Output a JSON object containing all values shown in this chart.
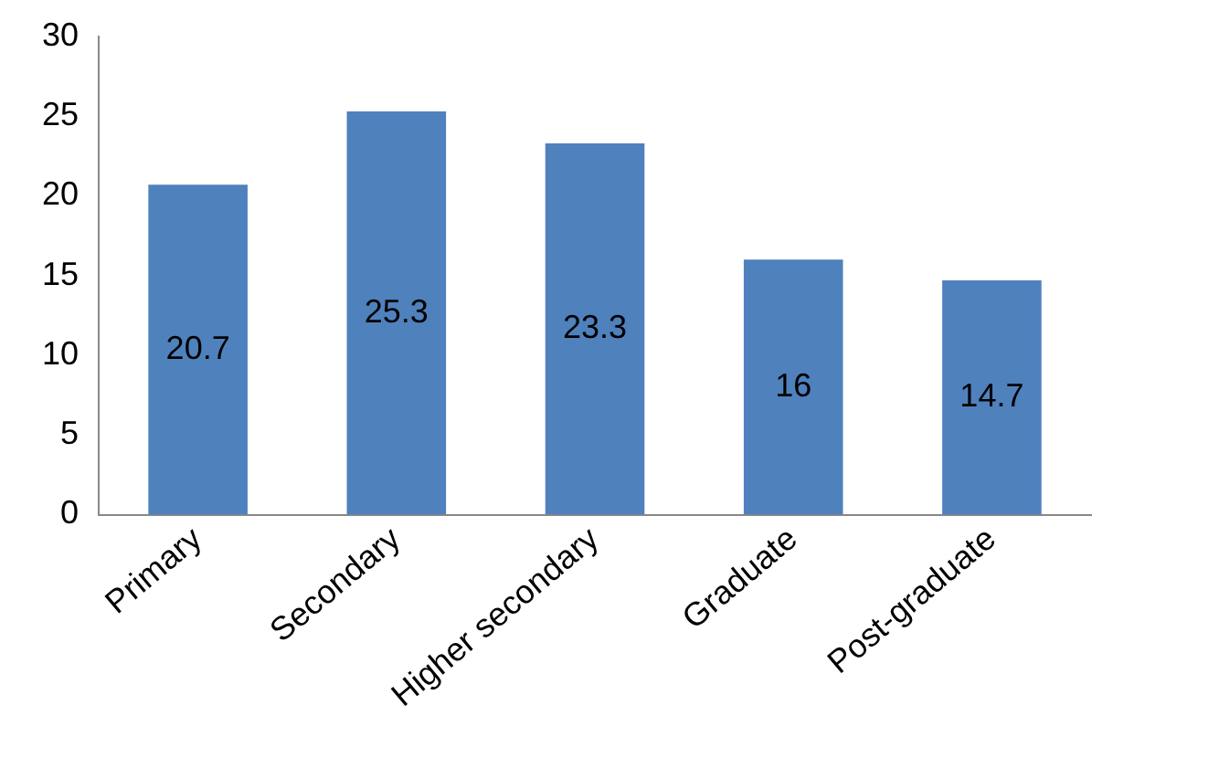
{
  "chart_data": {
    "type": "bar",
    "categories": [
      "Primary",
      "Secondary",
      "Higher secondary",
      "Graduate",
      "Post-graduate"
    ],
    "values": [
      20.7,
      25.3,
      23.3,
      16,
      14.7
    ],
    "color": "#4f81bd",
    "ylim": [
      0,
      30
    ],
    "yticks": [
      0,
      5,
      10,
      15,
      20,
      25,
      30
    ],
    "data_labels": true,
    "grid": false,
    "legend": false
  }
}
